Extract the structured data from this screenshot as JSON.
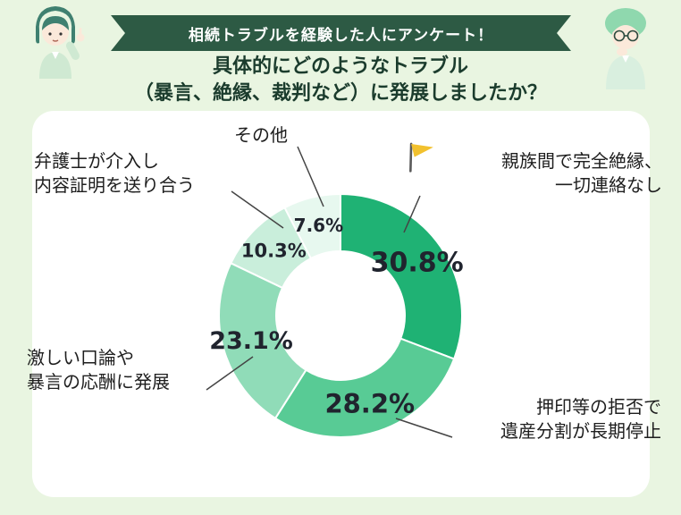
{
  "banner": {
    "text": "相続トラブルを経験した人にアンケート！",
    "bg_color": "#2d5a44",
    "text_color": "#ffffff"
  },
  "subtitle": {
    "line1": "具体的にどのようなトラブル",
    "line2": "（暴言、絶縁、裁判など）に発展しましたか？",
    "color": "#1b3c2d"
  },
  "chart_data": {
    "type": "pie",
    "variant": "donut",
    "start_angle_deg": 0,
    "direction": "clockwise",
    "categories": [
      "親族間で完全絶縁、一切連絡なし",
      "押印等の拒否で遺産分割が長期停止",
      "激しい口論や暴言の応酬に発展",
      "弁護士が介入し内容証明を送り合う",
      "その他"
    ],
    "values": [
      30.8,
      28.2,
      23.1,
      10.3,
      7.6
    ],
    "value_labels": [
      "30.8%",
      "28.2%",
      "23.1%",
      "10.3%",
      "7.6%"
    ],
    "colors": [
      "#1fb274",
      "#58cb95",
      "#90dcb8",
      "#c9eedb",
      "#e7f8ef"
    ],
    "value_label_color": "#20242e",
    "legend_position": "around-chart-callouts"
  },
  "callouts": {
    "zetsuen": {
      "line1": "親族間で完全絶縁、",
      "line2": "一切連絡なし",
      "has_flag_icon": true
    },
    "ouin": {
      "line1": "押印等の拒否で",
      "line2": "遺産分割が長期停止"
    },
    "kouron": {
      "line1": "激しい口論や",
      "line2": "暴言の応酬に発展"
    },
    "lawyer": {
      "line1": "弁護士が介入し",
      "line2": "内容証明を送り合う"
    },
    "sonota": {
      "line1": "その他"
    }
  },
  "flag_icon_color": "#f2c12e"
}
